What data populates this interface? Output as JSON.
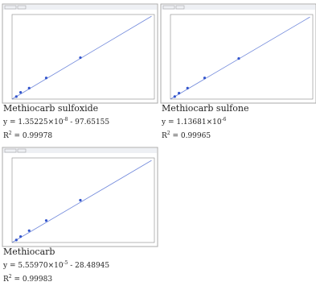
{
  "chart_data": [
    {
      "type": "scatter",
      "title": "Methiocarb sulfoxide",
      "equation": [
        "y = 1.35225×10",
        "-8",
        " - 97.65155"
      ],
      "r_squared": [
        "R",
        "2",
        " = 0.99978"
      ],
      "x": [
        3,
        6,
        12,
        24,
        48
      ],
      "values": [
        3,
        8,
        13,
        25,
        49
      ],
      "fit": {
        "x": [
          0,
          98
        ],
        "values": [
          0,
          98
        ]
      },
      "xlim": [
        0,
        100
      ],
      "ylim": [
        0,
        100
      ],
      "color": "#3355cc"
    },
    {
      "type": "scatter",
      "title": "Methiocarb sulfone",
      "equation": [
        "y = 1.13681×10",
        "-6",
        ""
      ],
      "r_squared": [
        "R",
        "2",
        " = 0.99965"
      ],
      "x": [
        3,
        6,
        12,
        24,
        48
      ],
      "values": [
        3,
        7,
        13,
        25,
        48
      ],
      "fit": {
        "x": [
          0,
          98
        ],
        "values": [
          0,
          97
        ]
      },
      "xlim": [
        0,
        100
      ],
      "ylim": [
        0,
        100
      ],
      "color": "#3355cc"
    },
    {
      "type": "scatter",
      "title": "Methiocarb",
      "equation": [
        "y = 5.55970×10",
        "-5",
        " - 28.48945"
      ],
      "r_squared": [
        "R",
        "2",
        " = 0.99983"
      ],
      "x": [
        3,
        6,
        12,
        24,
        48
      ],
      "values": [
        3,
        7,
        14,
        26,
        50
      ],
      "fit": {
        "x": [
          0,
          98
        ],
        "values": [
          0,
          97
        ]
      },
      "xlim": [
        0,
        100
      ],
      "ylim": [
        0,
        100
      ],
      "color": "#3355cc"
    }
  ]
}
